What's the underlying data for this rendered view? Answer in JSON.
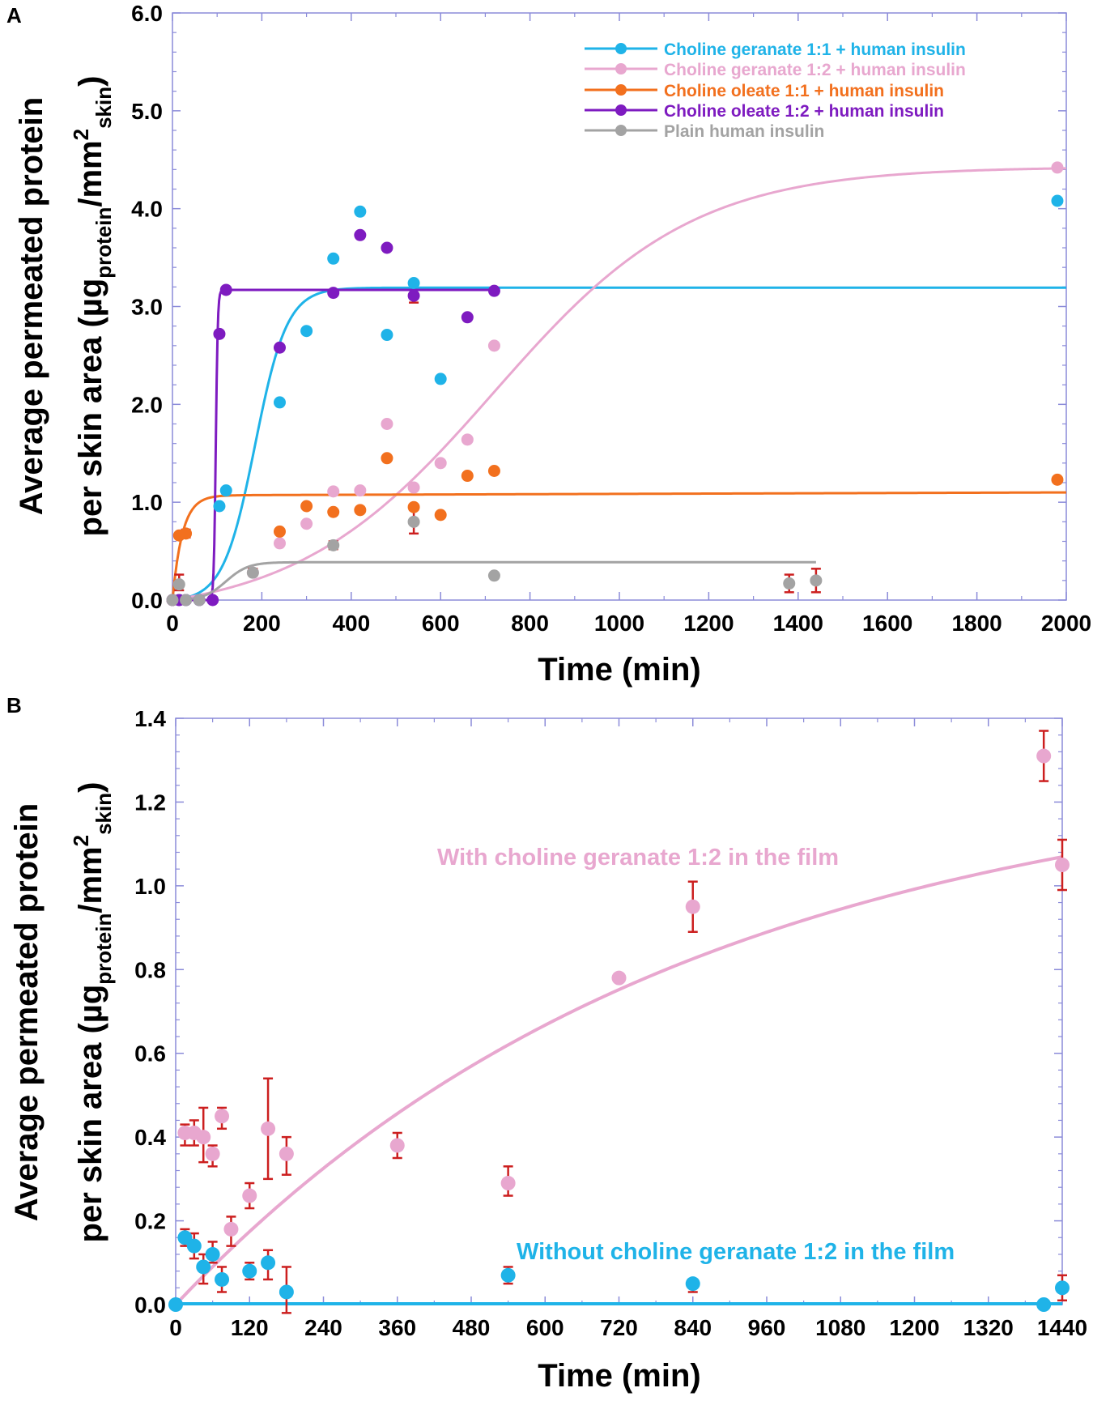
{
  "chart_data": [
    {
      "panel": "A",
      "type": "scatter",
      "xlabel": "Time (min)",
      "ylabel_line1": "Average permeated protein",
      "ylabel_line2": "per skin area (µg",
      "ylabel_sub1": "protein",
      "ylabel_mid": "/mm",
      "ylabel_sup": "2",
      "ylabel_sub2": "skin",
      "ylabel_end": ")",
      "xlim": [
        0,
        2000
      ],
      "ylim": [
        0,
        6
      ],
      "xticks": [
        0,
        200,
        400,
        600,
        800,
        1000,
        1200,
        1400,
        1600,
        1800,
        2000
      ],
      "yticks": [
        "0.0",
        "1.0",
        "2.0",
        "3.0",
        "4.0",
        "5.0",
        "6.0"
      ],
      "legend_position": "top-right",
      "series": [
        {
          "name": "Choline geranate 1:1 + human insulin",
          "color": "#1fb3e8",
          "points": [
            [
              0,
              0
            ],
            [
              15,
              0
            ],
            [
              30,
              0
            ],
            [
              60,
              0
            ],
            [
              105,
              0.96
            ],
            [
              120,
              1.12
            ],
            [
              240,
              2.02
            ],
            [
              300,
              2.75
            ],
            [
              360,
              3.49
            ],
            [
              420,
              3.97
            ],
            [
              480,
              2.71
            ],
            [
              540,
              3.24
            ],
            [
              600,
              2.26
            ],
            [
              1980,
              4.08
            ]
          ],
          "fit": "sigmoid",
          "fit_params": {
            "max": 3.21,
            "mid": 185,
            "k": 0.028
          }
        },
        {
          "name": "Choline geranate 1:2 + human insulin",
          "color": "#e8a7cf",
          "points": [
            [
              0,
              0
            ],
            [
              15,
              0
            ],
            [
              30,
              0
            ],
            [
              60,
              0
            ],
            [
              180,
              0.28
            ],
            [
              240,
              0.58
            ],
            [
              300,
              0.78
            ],
            [
              360,
              1.11
            ],
            [
              420,
              1.12
            ],
            [
              480,
              1.8
            ],
            [
              540,
              1.15
            ],
            [
              600,
              1.4
            ],
            [
              660,
              1.64
            ],
            [
              720,
              2.6
            ],
            [
              1980,
              4.42
            ]
          ],
          "fit": "sigmoid",
          "fit_params": {
            "max": 4.6,
            "mid": 720,
            "k": 0.0045
          }
        },
        {
          "name": "Choline oleate 1:1 + human insulin",
          "color": "#f2701e",
          "points": [
            [
              0,
              0
            ],
            [
              15,
              0.66
            ],
            [
              30,
              0.68
            ],
            [
              240,
              0.7
            ],
            [
              300,
              0.96
            ],
            [
              360,
              0.9
            ],
            [
              420,
              0.92
            ],
            [
              480,
              1.45
            ],
            [
              540,
              0.95
            ],
            [
              600,
              0.87
            ],
            [
              660,
              1.27
            ],
            [
              720,
              1.32
            ],
            [
              1980,
              1.23
            ]
          ],
          "fit": "saturation",
          "fit_params": {
            "plateau": 1.07,
            "k1": 0.045,
            "slope": 1.5e-05
          }
        },
        {
          "name": "Choline oleate 1:2 + human insulin",
          "color": "#7e1bc0",
          "points": [
            [
              0,
              0
            ],
            [
              15,
              0
            ],
            [
              30,
              0
            ],
            [
              60,
              0
            ],
            [
              90,
              0
            ],
            [
              105,
              2.72
            ],
            [
              120,
              3.17
            ],
            [
              240,
              2.58
            ],
            [
              360,
              3.14
            ],
            [
              420,
              3.73
            ],
            [
              480,
              3.6
            ],
            [
              540,
              3.11
            ],
            [
              660,
              2.89
            ],
            [
              720,
              3.16
            ]
          ],
          "fit": "sigmoid",
          "fit_params": {
            "max": 3.17,
            "mid": 97,
            "k": 0.45
          }
        },
        {
          "name": "Plain human insulin",
          "color": "#a3a3a3",
          "points": [
            [
              0,
              0
            ],
            [
              15,
              0.16
            ],
            [
              30,
              0
            ],
            [
              60,
              0
            ],
            [
              180,
              0.28
            ],
            [
              360,
              0.56
            ],
            [
              540,
              0.8
            ],
            [
              720,
              0.25
            ],
            [
              1380,
              0.17
            ],
            [
              1440,
              0.2
            ]
          ],
          "fit": "sigmoid",
          "fit_params": {
            "max": 0.39,
            "mid": 120,
            "k": 0.04,
            "xmax": 1440
          }
        }
      ],
      "error_bars": [
        [
          15,
          0.1,
          0.26
        ],
        [
          30,
          0.64,
          0.72
        ],
        [
          180,
          0.25,
          0.32
        ],
        [
          540,
          0.68,
          0.92
        ],
        [
          540,
          3.04,
          3.14
        ],
        [
          360,
          0.52,
          0.6
        ],
        [
          1380,
          0.08,
          0.26
        ],
        [
          1440,
          0.08,
          0.32
        ]
      ]
    },
    {
      "panel": "B",
      "type": "scatter",
      "xlabel": "Time (min)",
      "ylabel_line1": "Average permeated protein",
      "ylabel_line2": "per skin area (µg",
      "ylabel_sub1": "protein",
      "ylabel_mid": "/mm",
      "ylabel_sup": "2",
      "ylabel_sub2": "skin",
      "ylabel_end": ")",
      "xlim": [
        0,
        1440
      ],
      "ylim": [
        0,
        1.4
      ],
      "xticks": [
        0,
        120,
        240,
        360,
        480,
        600,
        720,
        840,
        960,
        1080,
        1200,
        1320,
        1440
      ],
      "yticks": [
        "0.0",
        "0.2",
        "0.4",
        "0.6",
        "0.8",
        "1.0",
        "1.2",
        "1.4"
      ],
      "series": [
        {
          "name": "With choline geranate 1:2 in the film",
          "color": "#e8a7cf",
          "points": [
            [
              15,
              0.41,
              0.38,
              0.43
            ],
            [
              30,
              0.41,
              0.38,
              0.44
            ],
            [
              45,
              0.4,
              0.34,
              0.47
            ],
            [
              60,
              0.36,
              0.33,
              0.38
            ],
            [
              75,
              0.45,
              0.42,
              0.47
            ],
            [
              90,
              0.18,
              0.14,
              0.21
            ],
            [
              120,
              0.26,
              0.23,
              0.29
            ],
            [
              150,
              0.42,
              0.3,
              0.54
            ],
            [
              180,
              0.36,
              0.31,
              0.4
            ],
            [
              360,
              0.38,
              0.35,
              0.41
            ],
            [
              540,
              0.29,
              0.26,
              0.33
            ],
            [
              720,
              0.78,
              0.78,
              0.78
            ],
            [
              840,
              0.95,
              0.89,
              1.01
            ],
            [
              1410,
              1.31,
              1.25,
              1.37
            ],
            [
              1440,
              1.05,
              0.99,
              1.11
            ]
          ],
          "fit": "saturation",
          "fit_params": {
            "a": 1.3,
            "k": 0.0012
          }
        },
        {
          "name": "Without choline geranate 1:2 in the film",
          "color": "#1fb3e8",
          "points": [
            [
              0,
              0,
              0,
              0
            ],
            [
              15,
              0.16,
              0.14,
              0.18
            ],
            [
              30,
              0.14,
              0.11,
              0.17
            ],
            [
              45,
              0.09,
              0.05,
              0.12
            ],
            [
              60,
              0.12,
              0.1,
              0.15
            ],
            [
              75,
              0.06,
              0.03,
              0.09
            ],
            [
              120,
              0.08,
              0.06,
              0.1
            ],
            [
              150,
              0.1,
              0.06,
              0.13
            ],
            [
              180,
              0.03,
              -0.02,
              0.09
            ],
            [
              540,
              0.07,
              0.05,
              0.09
            ],
            [
              840,
              0.05,
              0.03,
              0.06
            ],
            [
              1410,
              0,
              0,
              0
            ],
            [
              1440,
              0.04,
              0.01,
              0.07
            ]
          ],
          "fit": "flat",
          "fit_params": {
            "value": 0.002
          }
        }
      ],
      "annotations": {
        "with_label": "With choline geranate 1:2 in the film",
        "without_label": "Without choline geranate 1:2 in the film"
      }
    }
  ]
}
